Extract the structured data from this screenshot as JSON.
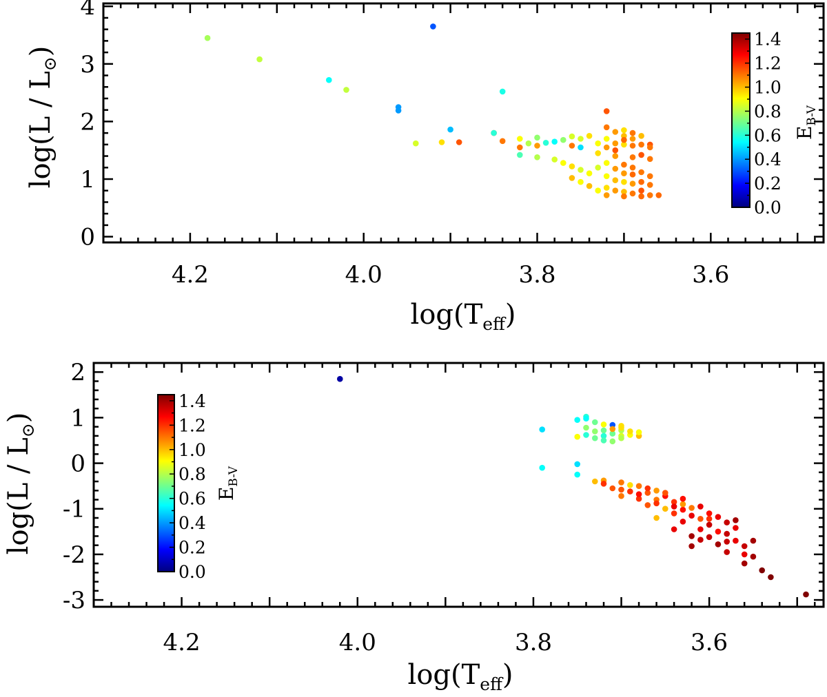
{
  "figure": {
    "panel_count": 2
  },
  "chart_data": [
    {
      "type": "scatter",
      "panel": "top",
      "xlabel": {
        "main": "log(T",
        "sub": "eff",
        "close": ")"
      },
      "ylabel": {
        "main": "log(L / L",
        "sun": "⊙",
        "close": ")"
      },
      "xlim": [
        4.3,
        3.47
      ],
      "ylim": [
        -0.1,
        4.05
      ],
      "xticks": [
        {
          "value": 4.2,
          "label": "4.2"
        },
        {
          "value": 4.0,
          "label": "4.0"
        },
        {
          "value": 3.8,
          "label": "3.8"
        },
        {
          "value": 3.6,
          "label": "3.6"
        }
      ],
      "yticks": [
        {
          "value": 0,
          "label": "0"
        },
        {
          "value": 1,
          "label": "1"
        },
        {
          "value": 2,
          "label": "2"
        },
        {
          "value": 3,
          "label": "3"
        },
        {
          "value": 4,
          "label": "4"
        }
      ],
      "colorbar": {
        "label": "E",
        "label_sub": "B-V",
        "range": [
          0.0,
          1.45
        ],
        "ticks": [
          {
            "value": 0.0,
            "label": "0.0"
          },
          {
            "value": 0.2,
            "label": "0.2"
          },
          {
            "value": 0.4,
            "label": "0.4"
          },
          {
            "value": 0.6,
            "label": "0.6"
          },
          {
            "value": 0.8,
            "label": "0.8"
          },
          {
            "value": 1.0,
            "label": "1.0"
          },
          {
            "value": 1.2,
            "label": "1.2"
          },
          {
            "value": 1.4,
            "label": "1.4"
          }
        ]
      },
      "points": [
        [
          4.18,
          3.45,
          0.78
        ],
        [
          4.12,
          3.08,
          0.82
        ],
        [
          4.04,
          2.72,
          0.55
        ],
        [
          4.02,
          2.55,
          0.82
        ],
        [
          3.96,
          2.25,
          0.4
        ],
        [
          3.96,
          2.19,
          0.4
        ],
        [
          3.92,
          3.65,
          0.3
        ],
        [
          3.9,
          1.86,
          0.45
        ],
        [
          3.94,
          1.62,
          0.85
        ],
        [
          3.91,
          1.64,
          0.95
        ],
        [
          3.89,
          1.64,
          1.15
        ],
        [
          3.85,
          1.8,
          1.15
        ],
        [
          3.84,
          1.66,
          1.1
        ],
        [
          3.84,
          2.52,
          0.58
        ],
        [
          3.85,
          1.8,
          0.6
        ],
        [
          3.82,
          1.7,
          0.9
        ],
        [
          3.82,
          1.55,
          1.1
        ],
        [
          3.81,
          1.62,
          0.8
        ],
        [
          3.8,
          1.72,
          0.75
        ],
        [
          3.8,
          1.58,
          1.05
        ],
        [
          3.79,
          1.63,
          0.6
        ],
        [
          3.78,
          1.65,
          0.55
        ],
        [
          3.77,
          1.68,
          0.75
        ],
        [
          3.76,
          1.74,
          0.85
        ],
        [
          3.76,
          1.58,
          1.1
        ],
        [
          3.75,
          1.7,
          0.85
        ],
        [
          3.75,
          1.55,
          0.5
        ],
        [
          3.74,
          1.75,
          0.95
        ],
        [
          3.82,
          1.42,
          0.65
        ],
        [
          3.8,
          1.38,
          0.8
        ],
        [
          3.78,
          1.34,
          0.85
        ],
        [
          3.77,
          1.28,
          0.9
        ],
        [
          3.76,
          1.22,
          0.95
        ],
        [
          3.75,
          1.16,
          0.85
        ],
        [
          3.74,
          1.1,
          0.9
        ],
        [
          3.76,
          1.02,
          1.0
        ],
        [
          3.75,
          0.95,
          0.9
        ],
        [
          3.74,
          0.88,
          1.0
        ],
        [
          3.73,
          0.8,
          0.9
        ],
        [
          3.72,
          2.18,
          1.15
        ],
        [
          3.72,
          1.9,
          1.1
        ],
        [
          3.71,
          1.82,
          1.05
        ],
        [
          3.7,
          1.85,
          0.95
        ],
        [
          3.7,
          1.75,
          1.0
        ],
        [
          3.69,
          1.8,
          1.1
        ],
        [
          3.69,
          1.7,
          1.05
        ],
        [
          3.68,
          1.6,
          1.1
        ],
        [
          3.67,
          1.6,
          1.15
        ],
        [
          3.7,
          1.6,
          0.95
        ],
        [
          3.71,
          1.62,
          1.05
        ],
        [
          3.69,
          1.58,
          1.1
        ],
        [
          3.7,
          1.68,
          1.12
        ],
        [
          3.68,
          1.75,
          1.0
        ],
        [
          3.67,
          1.55,
          1.1
        ],
        [
          3.72,
          1.7,
          0.9
        ],
        [
          3.71,
          1.5,
          1.15
        ],
        [
          3.73,
          1.2,
          0.85
        ],
        [
          3.72,
          1.28,
          0.9
        ],
        [
          3.71,
          1.18,
          1.05
        ],
        [
          3.7,
          1.25,
          1.1
        ],
        [
          3.69,
          1.2,
          1.1
        ],
        [
          3.7,
          1.1,
          1.05
        ],
        [
          3.69,
          1.08,
          1.12
        ],
        [
          3.68,
          1.12,
          1.1
        ],
        [
          3.67,
          1.05,
          1.1
        ],
        [
          3.72,
          1.05,
          0.9
        ],
        [
          3.71,
          0.98,
          1.0
        ],
        [
          3.7,
          0.95,
          0.95
        ],
        [
          3.69,
          0.92,
          1.05
        ],
        [
          3.68,
          0.95,
          1.12
        ],
        [
          3.67,
          0.9,
          1.1
        ],
        [
          3.72,
          0.85,
          0.95
        ],
        [
          3.71,
          0.8,
          1.05
        ],
        [
          3.7,
          0.78,
          1.0
        ],
        [
          3.69,
          0.75,
          1.1
        ],
        [
          3.68,
          0.8,
          1.15
        ],
        [
          3.67,
          0.72,
          1.1
        ],
        [
          3.66,
          0.72,
          1.12
        ],
        [
          3.72,
          0.72,
          1.05
        ],
        [
          3.7,
          0.7,
          1.1
        ],
        [
          3.68,
          0.7,
          1.12
        ],
        [
          3.73,
          1.45,
          0.95
        ],
        [
          3.71,
          1.4,
          1.05
        ],
        [
          3.69,
          1.38,
          1.1
        ],
        [
          3.68,
          1.42,
          1.15
        ],
        [
          3.67,
          1.35,
          1.1
        ],
        [
          3.73,
          1.62,
          0.9
        ],
        [
          3.72,
          1.55,
          1.05
        ]
      ]
    },
    {
      "type": "scatter",
      "panel": "bottom",
      "xlabel": {
        "main": "log(T",
        "sub": "eff",
        "close": ")"
      },
      "ylabel": {
        "main": "log(L / L",
        "sun": "⊙",
        "close": ")"
      },
      "xlim": [
        4.3,
        3.47
      ],
      "ylim": [
        -3.15,
        2.2
      ],
      "xticks": [
        {
          "value": 4.2,
          "label": "4.2"
        },
        {
          "value": 4.0,
          "label": "4.0"
        },
        {
          "value": 3.8,
          "label": "3.8"
        },
        {
          "value": 3.6,
          "label": "3.6"
        }
      ],
      "yticks": [
        {
          "value": -3,
          "label": "-3"
        },
        {
          "value": -2,
          "label": "-2"
        },
        {
          "value": -1,
          "label": "-1"
        },
        {
          "value": 0,
          "label": "0"
        },
        {
          "value": 1,
          "label": "1"
        },
        {
          "value": 2,
          "label": "2"
        }
      ],
      "colorbar": {
        "label": "E",
        "label_sub": "B-V",
        "range": [
          0.0,
          1.45
        ],
        "ticks": [
          {
            "value": 0.0,
            "label": "0.0"
          },
          {
            "value": 0.2,
            "label": "0.2"
          },
          {
            "value": 0.4,
            "label": "0.4"
          },
          {
            "value": 0.6,
            "label": "0.6"
          },
          {
            "value": 0.8,
            "label": "0.8"
          },
          {
            "value": 1.0,
            "label": "1.0"
          },
          {
            "value": 1.2,
            "label": "1.2"
          },
          {
            "value": 1.4,
            "label": "1.4"
          }
        ]
      },
      "points": [
        [
          4.02,
          1.85,
          0.05
        ],
        [
          3.79,
          0.74,
          0.5
        ],
        [
          3.75,
          -0.02,
          0.5
        ],
        [
          3.79,
          -0.1,
          0.55
        ],
        [
          3.75,
          0.95,
          0.55
        ],
        [
          3.74,
          1.02,
          0.6
        ],
        [
          3.74,
          0.98,
          0.55
        ],
        [
          3.73,
          0.9,
          0.7
        ],
        [
          3.72,
          0.85,
          0.9
        ],
        [
          3.71,
          0.84,
          0.3
        ],
        [
          3.7,
          0.82,
          0.95
        ],
        [
          3.7,
          0.72,
          0.8
        ],
        [
          3.72,
          0.72,
          0.7
        ],
        [
          3.73,
          0.7,
          0.75
        ],
        [
          3.74,
          0.62,
          0.6
        ],
        [
          3.75,
          0.58,
          0.9
        ],
        [
          3.73,
          0.55,
          0.7
        ],
        [
          3.72,
          0.6,
          0.6
        ],
        [
          3.71,
          0.65,
          0.7
        ],
        [
          3.7,
          0.6,
          0.85
        ],
        [
          3.69,
          0.62,
          0.9
        ],
        [
          3.69,
          0.7,
          0.95
        ],
        [
          3.68,
          0.6,
          1.0
        ],
        [
          3.7,
          0.55,
          0.8
        ],
        [
          3.72,
          0.5,
          0.65
        ],
        [
          3.71,
          0.48,
          0.75
        ],
        [
          3.7,
          0.78,
          0.95
        ],
        [
          3.71,
          0.75,
          1.05
        ],
        [
          3.68,
          0.68,
          0.9
        ],
        [
          3.74,
          0.78,
          0.75
        ],
        [
          3.75,
          -0.25,
          0.55
        ],
        [
          3.72,
          -0.38,
          1.05
        ],
        [
          3.7,
          -0.42,
          1.1
        ],
        [
          3.68,
          -0.5,
          1.1
        ],
        [
          3.71,
          -0.55,
          1.15
        ],
        [
          3.69,
          -0.62,
          1.2
        ],
        [
          3.67,
          -0.65,
          1.15
        ],
        [
          3.7,
          -0.72,
          1.1
        ],
        [
          3.68,
          -0.78,
          1.2
        ],
        [
          3.66,
          -0.8,
          1.1
        ],
        [
          3.64,
          -0.85,
          1.2
        ],
        [
          3.67,
          -0.92,
          1.15
        ],
        [
          3.65,
          -1.0,
          1.0
        ],
        [
          3.63,
          -1.02,
          1.25
        ],
        [
          3.64,
          -1.1,
          1.2
        ],
        [
          3.62,
          -1.15,
          1.3
        ],
        [
          3.61,
          -1.22,
          1.15
        ],
        [
          3.63,
          -1.28,
          1.3
        ],
        [
          3.6,
          -1.35,
          1.35
        ],
        [
          3.61,
          -1.45,
          1.3
        ],
        [
          3.59,
          -1.5,
          1.25
        ],
        [
          3.58,
          -1.55,
          1.35
        ],
        [
          3.6,
          -1.62,
          1.35
        ],
        [
          3.57,
          -1.7,
          1.3
        ],
        [
          3.59,
          -1.78,
          1.4
        ],
        [
          3.56,
          -1.82,
          1.35
        ],
        [
          3.61,
          -1.68,
          1.35
        ],
        [
          3.62,
          -1.82,
          1.4
        ],
        [
          3.58,
          -1.95,
          1.35
        ],
        [
          3.56,
          -2.0,
          1.3
        ],
        [
          3.55,
          -2.05,
          1.4
        ],
        [
          3.56,
          -2.2,
          1.4
        ],
        [
          3.54,
          -2.35,
          1.45
        ],
        [
          3.53,
          -2.5,
          1.45
        ],
        [
          3.49,
          -2.88,
          1.45
        ],
        [
          3.69,
          -0.48,
          0.95
        ],
        [
          3.66,
          -0.6,
          1.05
        ],
        [
          3.65,
          -0.72,
          1.25
        ],
        [
          3.63,
          -0.9,
          1.05
        ],
        [
          3.62,
          -0.98,
          1.1
        ],
        [
          3.6,
          -1.1,
          1.25
        ],
        [
          3.58,
          -1.3,
          1.35
        ],
        [
          3.57,
          -1.42,
          1.3
        ],
        [
          3.6,
          -1.22,
          1.2
        ],
        [
          3.64,
          -0.95,
          1.3
        ],
        [
          3.66,
          -0.88,
          1.2
        ],
        [
          3.68,
          -0.68,
          1.25
        ],
        [
          3.7,
          -0.58,
          1.15
        ],
        [
          3.72,
          -0.45,
          1.2
        ],
        [
          3.73,
          -0.4,
          1.0
        ],
        [
          3.67,
          -0.55,
          1.2
        ],
        [
          3.65,
          -0.65,
          1.15
        ],
        [
          3.63,
          -0.78,
          1.25
        ],
        [
          3.61,
          -0.95,
          1.3
        ],
        [
          3.59,
          -1.18,
          1.3
        ],
        [
          3.57,
          -1.25,
          1.4
        ],
        [
          3.55,
          -1.7,
          1.4
        ],
        [
          3.58,
          -1.72,
          1.35
        ],
        [
          3.62,
          -1.6,
          1.4
        ],
        [
          3.64,
          -1.45,
          1.3
        ],
        [
          3.66,
          -1.2,
          1.0
        ]
      ]
    }
  ]
}
